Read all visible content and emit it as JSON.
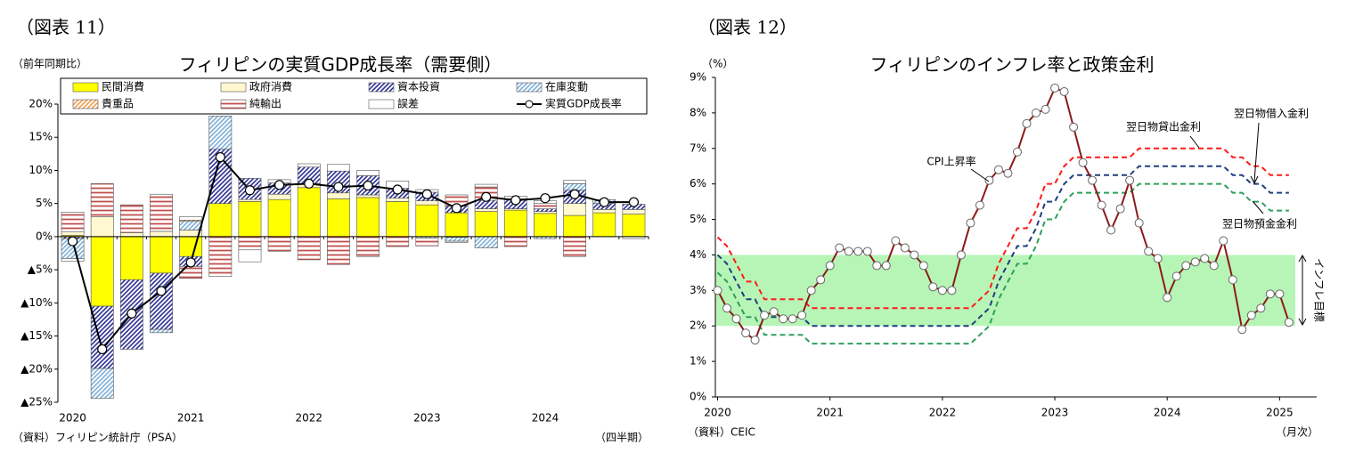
{
  "chart_data": [
    {
      "type": "bar",
      "stacked": true,
      "figure_label": "（図表 11）",
      "title": "フィリピンの実質GDP成長率（需要側）",
      "y_label": "（前年同期比）",
      "x_note": "（四半期）",
      "source": "（資料）フィリピン統計庁（PSA）",
      "categories": [
        "2020",
        null,
        null,
        null,
        "2021",
        null,
        null,
        null,
        "2022",
        null,
        null,
        null,
        "2023",
        null,
        null,
        null,
        "2024",
        null,
        null,
        null
      ],
      "ylim": [
        -25,
        20
      ],
      "yticks": [
        {
          "value": 20,
          "label": "20%"
        },
        {
          "value": 15,
          "label": "15%"
        },
        {
          "value": 10,
          "label": "10%"
        },
        {
          "value": 5,
          "label": "5%"
        },
        {
          "value": 0,
          "label": "0%"
        },
        {
          "value": -5,
          "label": "▲5%"
        },
        {
          "value": -10,
          "label": "▲10%"
        },
        {
          "value": -15,
          "label": "▲15%"
        },
        {
          "value": -20,
          "label": "▲20%"
        },
        {
          "value": -25,
          "label": "▲25%"
        }
      ],
      "series": [
        {
          "name": "民間消費",
          "color": "#ffff00",
          "pattern": "solid",
          "values": [
            0.2,
            -10.5,
            -6.5,
            -5.5,
            -3.0,
            5.0,
            5.3,
            5.6,
            7.4,
            5.7,
            5.9,
            5.3,
            4.8,
            3.6,
            3.8,
            4.0,
            3.5,
            3.2,
            3.6,
            3.4
          ]
        },
        {
          "name": "政府消費",
          "color": "#fff8d0",
          "pattern": "solid",
          "values": [
            0.5,
            3.0,
            0.6,
            0.8,
            1.0,
            0.0,
            0.3,
            0.8,
            0.6,
            0.9,
            0.4,
            0.5,
            0.6,
            -0.1,
            0.4,
            0.2,
            0.3,
            1.8,
            0.5,
            0.7
          ]
        },
        {
          "name": "資本投資",
          "color": "#2e3192",
          "pattern": "diagonal",
          "values": [
            -0.3,
            -9.4,
            -10.5,
            -8.5,
            -1.5,
            8.2,
            3.2,
            1.7,
            2.5,
            3.3,
            2.9,
            1.5,
            1.3,
            1.0,
            1.3,
            1.5,
            0.4,
            2.0,
            0.9,
            0.8
          ]
        },
        {
          "name": "在庫変動",
          "color": "#7fb0d8",
          "pattern": "diagonal",
          "values": [
            -3.0,
            -4.5,
            0.0,
            -0.5,
            1.3,
            5.0,
            0.0,
            0.0,
            0.0,
            0.0,
            0.0,
            0.0,
            -0.2,
            -0.6,
            -1.7,
            0.0,
            -0.3,
            1.0,
            0.6,
            0.0
          ]
        },
        {
          "name": "貴重品",
          "color": "#f0a050",
          "pattern": "diagonal",
          "values": [
            0.0,
            0.0,
            0.0,
            0.0,
            0.2,
            0.0,
            0.0,
            0.0,
            0.0,
            0.0,
            0.0,
            0.0,
            0.0,
            0.0,
            0.0,
            0.0,
            0.0,
            0.0,
            0.0,
            0.0
          ]
        },
        {
          "name": "純輸出",
          "color": "#c0504d",
          "pattern": "horizontal",
          "values": [
            3.0,
            5.0,
            4.2,
            5.6,
            -1.8,
            -6.0,
            -2.0,
            -2.2,
            -3.5,
            -4.2,
            -3.0,
            -1.5,
            -1.2,
            1.7,
            2.0,
            -1.5,
            0.8,
            -3.0,
            0.0,
            0.0
          ]
        },
        {
          "name": "誤差",
          "color": "#ffffff",
          "pattern": "solid",
          "values": [
            -0.4,
            0.0,
            0.0,
            0.0,
            0.5,
            0.0,
            -1.8,
            0.5,
            0.5,
            1.0,
            0.8,
            1.1,
            0.4,
            -0.2,
            0.4,
            0.4,
            0.4,
            0.5,
            0.0,
            -0.3
          ]
        },
        {
          "name": "実質GDP成長率",
          "color": "#000000",
          "type": "line",
          "values": [
            -0.7,
            -17.0,
            -11.6,
            -8.2,
            -3.9,
            12.0,
            7.0,
            7.8,
            8.0,
            7.5,
            7.7,
            7.1,
            6.4,
            4.3,
            6.0,
            5.5,
            5.8,
            6.4,
            5.2,
            5.2
          ]
        }
      ]
    },
    {
      "type": "line",
      "figure_label": "（図表 12）",
      "title": "フィリピンのインフレ率と政策金利",
      "y_label": "（%）",
      "x_note": "（月次）",
      "source": "（資料）CEIC",
      "x": [
        2020,
        2020.0833,
        2020.1667,
        2020.25,
        2020.3333,
        2020.4167,
        2020.5,
        2020.5833,
        2020.6667,
        2020.75,
        2020.8333,
        2020.9167,
        2021,
        2021.0833,
        2021.1667,
        2021.25,
        2021.3333,
        2021.4167,
        2021.5,
        2021.5833,
        2021.6667,
        2021.75,
        2021.8333,
        2021.9167,
        2022,
        2022.0833,
        2022.1667,
        2022.25,
        2022.3333,
        2022.4167,
        2022.5,
        2022.5833,
        2022.6667,
        2022.75,
        2022.8333,
        2022.9167,
        2023,
        2023.0833,
        2023.1667,
        2023.25,
        2023.3333,
        2023.4167,
        2023.5,
        2023.5833,
        2023.6667,
        2023.75,
        2023.8333,
        2023.9167,
        2024,
        2024.0833,
        2024.1667,
        2024.25,
        2024.3333,
        2024.4167,
        2024.5,
        2024.5833,
        2024.6667,
        2024.75,
        2024.8333,
        2024.9167,
        2025,
        2025.0833
      ],
      "xlim": [
        2019.98,
        2025.33
      ],
      "xticks": [
        2020,
        2021,
        2022,
        2023,
        2024,
        2025
      ],
      "ylim": [
        0,
        9
      ],
      "yticks": [
        {
          "value": 0,
          "label": "0%"
        },
        {
          "value": 1,
          "label": "1%"
        },
        {
          "value": 2,
          "label": "2%"
        },
        {
          "value": 3,
          "label": "3%"
        },
        {
          "value": 4,
          "label": "4%"
        },
        {
          "value": 5,
          "label": "5%"
        },
        {
          "value": 6,
          "label": "6%"
        },
        {
          "value": 7,
          "label": "7%"
        },
        {
          "value": 8,
          "label": "8%"
        },
        {
          "value": 9,
          "label": "9%"
        }
      ],
      "target_range": [
        2,
        4
      ],
      "target_label": "インフレ目標",
      "series": [
        {
          "name": "CPI上昇率",
          "color": "#8b1a1a",
          "markers": true,
          "values": [
            3.0,
            2.5,
            2.2,
            1.8,
            1.6,
            2.3,
            2.4,
            2.2,
            2.2,
            2.3,
            3.0,
            3.3,
            3.7,
            4.2,
            4.1,
            4.1,
            4.1,
            3.7,
            3.7,
            4.4,
            4.2,
            4.0,
            3.7,
            3.1,
            3.0,
            3.0,
            4.0,
            4.9,
            5.4,
            6.1,
            6.4,
            6.3,
            6.9,
            7.7,
            8.0,
            8.1,
            8.7,
            8.6,
            7.6,
            6.6,
            6.1,
            5.4,
            4.7,
            5.3,
            6.1,
            4.9,
            4.1,
            3.9,
            2.8,
            3.4,
            3.7,
            3.8,
            3.9,
            3.7,
            4.4,
            3.3,
            1.9,
            2.3,
            2.5,
            2.9,
            2.9,
            2.1
          ]
        },
        {
          "name": "翌日物貸出金利",
          "color": "#ff1a1a",
          "dash": true,
          "values": [
            4.5,
            4.25,
            3.75,
            3.25,
            3.25,
            2.75,
            2.75,
            2.75,
            2.75,
            2.75,
            2.5,
            2.5,
            2.5,
            2.5,
            2.5,
            2.5,
            2.5,
            2.5,
            2.5,
            2.5,
            2.5,
            2.5,
            2.5,
            2.5,
            2.5,
            2.5,
            2.5,
            2.5,
            2.75,
            3.0,
            3.75,
            4.25,
            4.75,
            4.75,
            5.25,
            6.0,
            6.0,
            6.5,
            6.75,
            6.75,
            6.75,
            6.75,
            6.75,
            6.75,
            6.75,
            7.0,
            7.0,
            7.0,
            7.0,
            7.0,
            7.0,
            7.0,
            7.0,
            7.0,
            7.0,
            6.75,
            6.75,
            6.5,
            6.5,
            6.25,
            6.25,
            6.25
          ]
        },
        {
          "name": "翌日物借入金利",
          "color": "#1f3f7f",
          "dash": true,
          "values": [
            4.0,
            3.75,
            3.25,
            2.75,
            2.75,
            2.25,
            2.25,
            2.25,
            2.25,
            2.25,
            2.0,
            2.0,
            2.0,
            2.0,
            2.0,
            2.0,
            2.0,
            2.0,
            2.0,
            2.0,
            2.0,
            2.0,
            2.0,
            2.0,
            2.0,
            2.0,
            2.0,
            2.0,
            2.25,
            2.5,
            3.25,
            3.75,
            4.25,
            4.25,
            4.75,
            5.5,
            5.5,
            6.0,
            6.25,
            6.25,
            6.25,
            6.25,
            6.25,
            6.25,
            6.25,
            6.5,
            6.5,
            6.5,
            6.5,
            6.5,
            6.5,
            6.5,
            6.5,
            6.5,
            6.5,
            6.25,
            6.25,
            6.0,
            6.0,
            5.75,
            5.75,
            5.75
          ]
        },
        {
          "name": "翌日物預金金利",
          "color": "#2ca05a",
          "dash": true,
          "values": [
            3.5,
            3.25,
            2.75,
            2.25,
            2.25,
            1.75,
            1.75,
            1.75,
            1.75,
            1.75,
            1.5,
            1.5,
            1.5,
            1.5,
            1.5,
            1.5,
            1.5,
            1.5,
            1.5,
            1.5,
            1.5,
            1.5,
            1.5,
            1.5,
            1.5,
            1.5,
            1.5,
            1.5,
            1.75,
            2.0,
            2.75,
            3.25,
            3.75,
            3.75,
            4.25,
            5.0,
            5.0,
            5.5,
            5.75,
            5.75,
            5.75,
            5.75,
            5.75,
            5.75,
            5.75,
            6.0,
            6.0,
            6.0,
            6.0,
            6.0,
            6.0,
            6.0,
            6.0,
            6.0,
            6.0,
            5.75,
            5.75,
            5.5,
            5.5,
            5.25,
            5.25,
            5.25
          ]
        }
      ]
    }
  ]
}
